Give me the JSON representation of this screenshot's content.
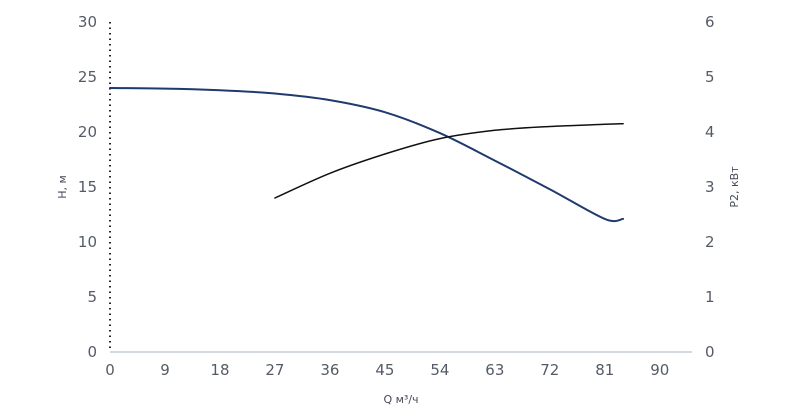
{
  "chart_data": {
    "type": "line",
    "title": "",
    "xlabel": "Q м³/ч",
    "ylabel": "H, м",
    "y2label": "P2, кВт",
    "xlim": [
      0,
      92
    ],
    "ylim": [
      0,
      30
    ],
    "y2lim": [
      0,
      6
    ],
    "x_ticks": [
      0,
      9,
      18,
      27,
      36,
      45,
      54,
      63,
      72,
      81,
      90
    ],
    "y_ticks": [
      0,
      5,
      10,
      15,
      20,
      25,
      30
    ],
    "y2_ticks": [
      0,
      1,
      2,
      3,
      4,
      5,
      6
    ],
    "grid": false,
    "series": [
      {
        "axis": "left",
        "color": "#1f3a6e",
        "x": [
          0,
          9,
          18,
          27,
          36,
          45,
          54,
          63,
          72,
          81,
          84
        ],
        "y": [
          24.0,
          23.95,
          23.8,
          23.5,
          22.9,
          21.8,
          19.9,
          17.4,
          14.8,
          12.1,
          12.1
        ]
      },
      {
        "axis": "right",
        "color": "#111111",
        "x": [
          27,
          36,
          45,
          54,
          63,
          72,
          81,
          84
        ],
        "y": [
          2.8,
          3.25,
          3.6,
          3.88,
          4.03,
          4.1,
          4.14,
          4.15
        ]
      }
    ]
  }
}
